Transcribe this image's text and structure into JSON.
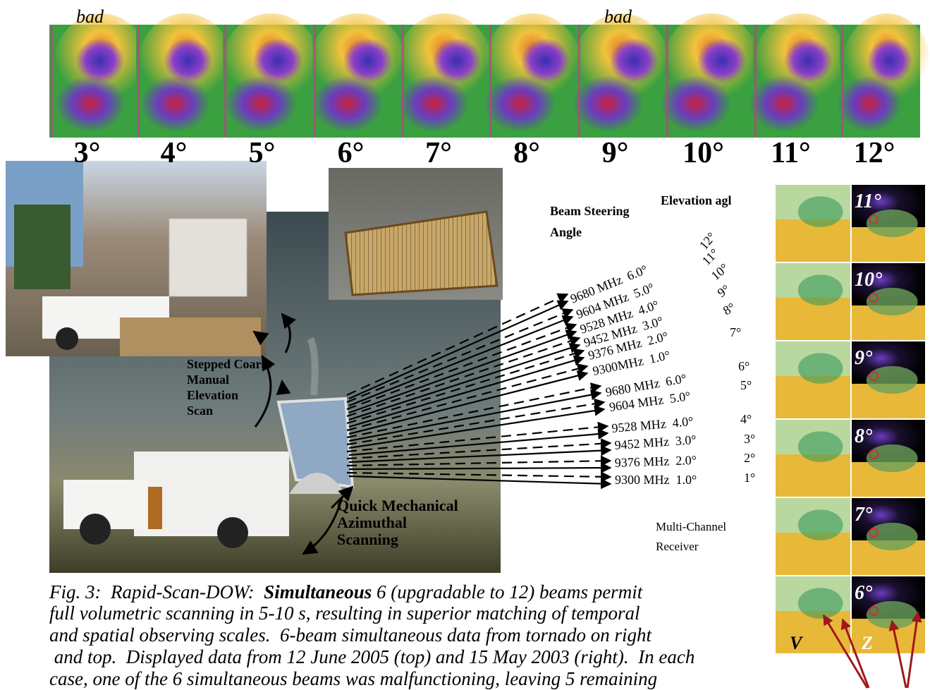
{
  "top_strip": {
    "bad_labels": [
      "bad",
      "bad"
    ],
    "angles": [
      "3°",
      "4°",
      "5°",
      "6°",
      "7°",
      "8°",
      "9°",
      "10°",
      "11°",
      "12°"
    ]
  },
  "photo_labels": {
    "elevation_scan": [
      "Stepped Coarse",
      "Manual",
      "Elevation",
      "Scan"
    ],
    "azimuth_scan": [
      "Quick Mechanical",
      "Azimuthal",
      "Scanning"
    ]
  },
  "headers": {
    "elevation": "Elevation agl",
    "beam_steering": [
      "Beam Steering",
      "Angle"
    ]
  },
  "beam_labels": [
    "9680 MHz  6.0°",
    "9604 MHz  5.0°",
    "9528 MHz  4.0°",
    "9452 MHz  3.0°",
    "9376 MHz  2.0°",
    "9300MHz  1.0°",
    "9680 MHz  6.0°",
    "9604 MHz  5.0°",
    "9528 MHz  4.0°",
    "9452 MHz  3.0°",
    "9376 MHz  2.0°",
    "9300 MHz  1.0°"
  ],
  "elevations": [
    "12°",
    "11°",
    "10°",
    "9°",
    "8°",
    "7°",
    "6°",
    "5°",
    "4°",
    "3°",
    "2°",
    "1°"
  ],
  "receiver": [
    "Multi-Channel",
    "Receiver"
  ],
  "right_panel": {
    "angles": [
      "11°",
      "10°",
      "9°",
      "8°",
      "7°",
      "6°"
    ],
    "columns": [
      "V",
      "Z"
    ]
  },
  "caption": {
    "lead": "Fig. 3:  Rapid-Scan-DOW:  ",
    "emphasis": "Simultaneous",
    "rest": " 6 (upgradable to 12) beams permit",
    "lines": [
      "full volumetric scanning in 5-10 s, resulting in superior matching of temporal",
      "and spatial observing scales.  6-beam simultaneous data from tornado on right",
      " and top.  Displayed data from 12 June 2005 (top) and 15 May 2003 (right).  In each",
      "case, one of the 6 simultaneous beams was malfunctioning, leaving 5 remaining"
    ]
  }
}
